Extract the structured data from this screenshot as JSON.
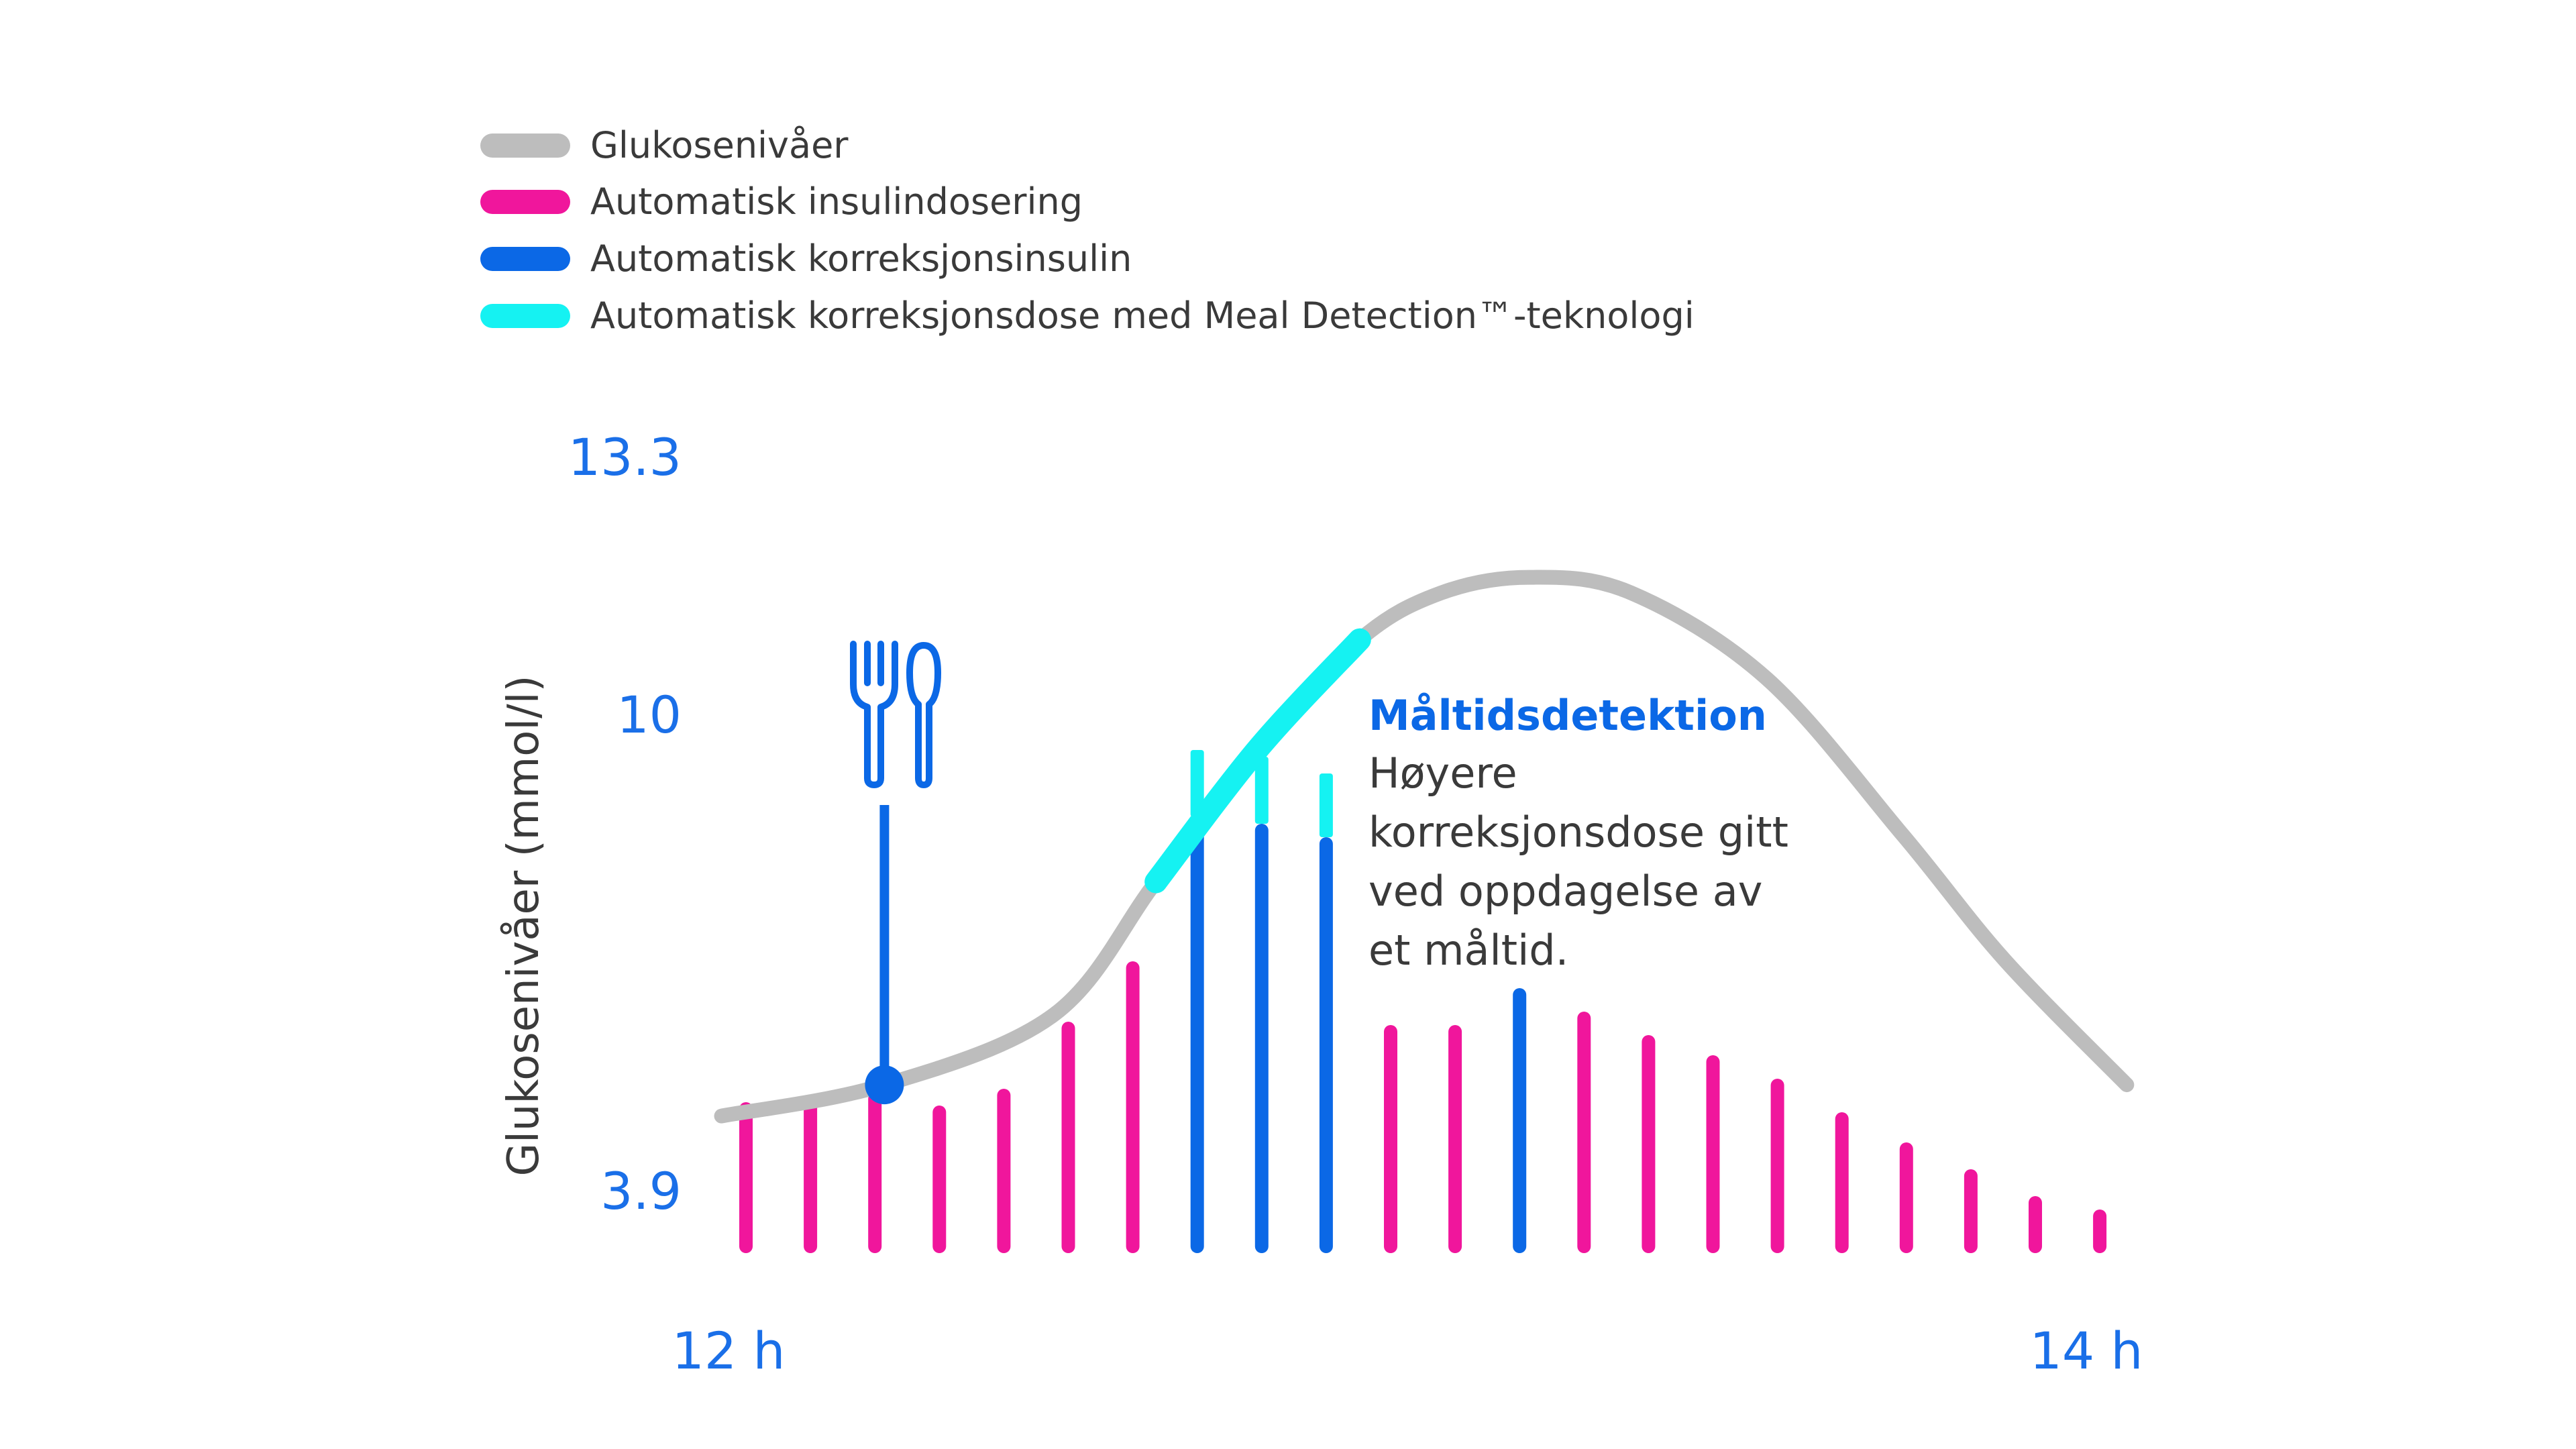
{
  "colors": {
    "glucose": "#BDBDBD",
    "auto_insulin": "#F0169C",
    "correction": "#0B68E6",
    "meal_detection": "#15F2F2",
    "axis_text": "#1A6FE8",
    "text_dark": "#3A3A3A",
    "annotation_title": "#0B68E6"
  },
  "legend": [
    {
      "key": "glucose",
      "label": "Glukosenivåer"
    },
    {
      "key": "auto_insulin",
      "label": "Automatisk insulindosering"
    },
    {
      "key": "correction",
      "label": "Automatisk korreksjonsinsulin"
    },
    {
      "key": "meal_detection",
      "label": "Automatisk korreksjonsdose med Meal Detection™-teknologi"
    }
  ],
  "annotation": {
    "title": "Måltidsdetektion",
    "lines": [
      "Høyere",
      "korreksjonsdose gitt",
      "ved oppdagelse av",
      "et måltid."
    ]
  },
  "meal_icon": "fork-spoon-icon",
  "chart_data": {
    "type": "bar",
    "ylabel": "Glukosenivåer (mmol/l)",
    "y_ticks": [
      {
        "value": 3.9,
        "label": "3.9"
      },
      {
        "value": 10,
        "label": "10"
      },
      {
        "value": 13.3,
        "label": "13.3"
      }
    ],
    "ylim": [
      3.9,
      13.3
    ],
    "x_ticks": [
      {
        "value": 12,
        "label": "12 h"
      },
      {
        "value": 14,
        "label": "14 h"
      }
    ],
    "xlim": [
      12,
      14
    ],
    "glucose_curve": {
      "x": [
        11.96,
        12.2,
        12.45,
        12.6,
        12.75,
        12.9,
        13.02,
        13.15,
        13.3,
        13.5,
        13.7,
        13.85,
        14.03
      ],
      "y": [
        4.9,
        5.3,
        6.2,
        7.9,
        9.6,
        11.0,
        11.6,
        11.8,
        11.6,
        10.5,
        8.5,
        6.9,
        5.3
      ]
    },
    "meal_detection_segment": {
      "x_start": 12.6,
      "x_end": 12.9
    },
    "meal_event": {
      "x": 12.2,
      "y": 5.3
    },
    "series": [
      {
        "name": "Automatisk insulindosering",
        "key": "auto_insulin",
        "values": [
          0.45,
          0.46,
          0.48,
          0.44,
          0.49,
          0.69,
          0.87,
          0,
          0,
          0,
          0.68,
          0.68,
          0,
          0.72,
          0.65,
          0.59,
          0.52,
          0.42,
          0.33,
          0.25,
          0.17,
          0.13
        ]
      },
      {
        "name": "Automatisk korreksjonsinsulin",
        "key": "correction",
        "values": [
          0,
          0,
          0,
          0,
          0,
          0,
          0,
          1.3,
          1.28,
          1.24,
          0,
          0,
          0.79,
          0,
          0,
          0,
          0,
          0,
          0,
          0,
          0,
          0
        ]
      },
      {
        "name": "Automatisk korreksjonsdose med Meal Detection™-teknologi",
        "key": "meal_detection",
        "values": [
          0,
          0,
          0,
          0,
          0,
          0,
          0,
          0.2,
          0.2,
          0.19,
          0,
          0,
          0,
          0,
          0,
          0,
          0,
          0,
          0,
          0,
          0,
          0
        ]
      }
    ]
  }
}
